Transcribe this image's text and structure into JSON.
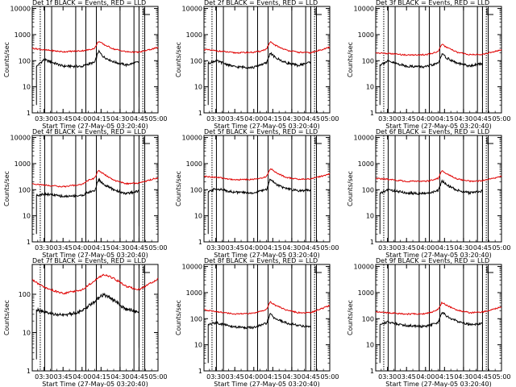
{
  "window": {
    "tick_times": [
      "03:30",
      "03:45",
      "04:00",
      "04:15",
      "04:30",
      "04:45",
      "05:00"
    ],
    "xlabel": "Start Time (27-May-05 03:20:40)",
    "ylabel": "Counts/sec",
    "y_ticks": [
      "1",
      "10",
      "100",
      "1000",
      "10000"
    ]
  },
  "colors": {
    "events": "#000000",
    "lld": "#e00000",
    "background": "#ffffff"
  },
  "chart_data": [
    {
      "type": "line",
      "title": "Det 1f BLACK = Events, RED = LLD",
      "xlabel": "Start Time (27-May-05 03:20:40)",
      "ylabel": "Counts/sec",
      "x_range": [
        "03:20:40",
        "05:00:00"
      ],
      "ylim": [
        1,
        12000
      ],
      "y_scale": "log",
      "grid": false,
      "legend": "none",
      "series": [
        {
          "name": "Events",
          "x": [
            "03:24",
            "03:30",
            "03:45",
            "04:00",
            "04:05",
            "04:10",
            "04:13",
            "04:17",
            "04:25",
            "04:35",
            "04:45"
          ],
          "values": [
            60,
            110,
            62,
            60,
            75,
            85,
            230,
            140,
            90,
            68,
            90
          ]
        },
        {
          "name": "LLD",
          "x": [
            "03:20:40",
            "03:30",
            "03:45",
            "04:00",
            "04:05",
            "04:10",
            "04:13",
            "04:17",
            "04:25",
            "04:35",
            "04:45",
            "05:00"
          ],
          "values": [
            300,
            260,
            220,
            240,
            260,
            300,
            560,
            420,
            280,
            220,
            210,
            320
          ]
        }
      ]
    },
    {
      "type": "line",
      "title": "Det 2f BLACK = Events, RED = LLD",
      "xlabel": "Start Time (27-May-05 03:20:40)",
      "ylabel": "Counts/sec",
      "x_range": [
        "03:20:40",
        "05:00:00"
      ],
      "ylim": [
        1,
        12000
      ],
      "y_scale": "log",
      "grid": false,
      "legend": "none",
      "series": [
        {
          "name": "Events",
          "x": [
            "03:24",
            "03:30",
            "03:45",
            "04:00",
            "04:05",
            "04:10",
            "04:13",
            "04:17",
            "04:25",
            "04:35",
            "04:45"
          ],
          "values": [
            80,
            100,
            58,
            55,
            70,
            80,
            200,
            130,
            85,
            65,
            90
          ]
        },
        {
          "name": "LLD",
          "x": [
            "03:20:40",
            "03:30",
            "03:45",
            "04:00",
            "04:05",
            "04:10",
            "04:13",
            "04:17",
            "04:25",
            "04:35",
            "04:45",
            "05:00"
          ],
          "values": [
            270,
            240,
            200,
            210,
            230,
            280,
            520,
            390,
            260,
            210,
            200,
            330
          ]
        }
      ]
    },
    {
      "type": "line",
      "title": "Det 3f BLACK = Events, RED = LLD",
      "xlabel": "Start Time (27-May-05 03:20:40)",
      "ylabel": "Counts/sec",
      "x_range": [
        "03:20:40",
        "05:00:00"
      ],
      "ylim": [
        1,
        12000
      ],
      "y_scale": "log",
      "grid": false,
      "legend": "none",
      "series": [
        {
          "name": "Events",
          "x": [
            "03:24",
            "03:30",
            "03:45",
            "04:00",
            "04:05",
            "04:10",
            "04:13",
            "04:17",
            "04:25",
            "04:35",
            "04:45"
          ],
          "values": [
            70,
            95,
            62,
            58,
            68,
            80,
            180,
            125,
            80,
            62,
            80
          ]
        },
        {
          "name": "LLD",
          "x": [
            "03:20:40",
            "03:30",
            "03:45",
            "04:00",
            "04:05",
            "04:10",
            "04:13",
            "04:17",
            "04:25",
            "04:35",
            "04:45",
            "05:00"
          ],
          "values": [
            200,
            190,
            165,
            170,
            190,
            230,
            420,
            320,
            210,
            170,
            175,
            260
          ]
        }
      ]
    },
    {
      "type": "line",
      "title": "Det 4f BLACK = Events, RED = LLD",
      "xlabel": "Start Time (27-May-05 03:20:40)",
      "ylabel": "Counts/sec",
      "x_range": [
        "03:20:40",
        "05:00:00"
      ],
      "ylim": [
        1,
        12000
      ],
      "y_scale": "log",
      "grid": false,
      "legend": "none",
      "series": [
        {
          "name": "Events",
          "x": [
            "03:24",
            "03:30",
            "03:45",
            "04:00",
            "04:05",
            "04:10",
            "04:13",
            "04:17",
            "04:25",
            "04:35",
            "04:45"
          ],
          "values": [
            60,
            70,
            55,
            60,
            80,
            90,
            250,
            160,
            100,
            70,
            90
          ]
        },
        {
          "name": "LLD",
          "x": [
            "03:20:40",
            "03:30",
            "03:45",
            "04:00",
            "04:05",
            "04:10",
            "04:13",
            "04:17",
            "04:25",
            "04:35",
            "04:45",
            "05:00"
          ],
          "values": [
            170,
            150,
            130,
            160,
            230,
            280,
            560,
            400,
            230,
            170,
            180,
            290
          ]
        }
      ]
    },
    {
      "type": "line",
      "title": "Det 5f BLACK = Events, RED = LLD",
      "xlabel": "Start Time (27-May-05 03:20:40)",
      "ylabel": "Counts/sec",
      "x_range": [
        "03:20:40",
        "05:00:00"
      ],
      "ylim": [
        1,
        12000
      ],
      "y_scale": "log",
      "grid": false,
      "legend": "none",
      "series": [
        {
          "name": "Events",
          "x": [
            "03:24",
            "03:30",
            "03:45",
            "04:00",
            "04:05",
            "04:10",
            "04:13",
            "04:17",
            "04:25",
            "04:35",
            "04:45"
          ],
          "values": [
            80,
            110,
            80,
            75,
            90,
            100,
            260,
            170,
            110,
            90,
            100
          ]
        },
        {
          "name": "LLD",
          "x": [
            "03:20:40",
            "03:30",
            "03:45",
            "04:00",
            "04:05",
            "04:10",
            "04:13",
            "04:17",
            "04:25",
            "04:35",
            "04:45",
            "05:00"
          ],
          "values": [
            320,
            300,
            240,
            250,
            270,
            320,
            650,
            480,
            300,
            250,
            260,
            400
          ]
        }
      ]
    },
    {
      "type": "line",
      "title": "Det 6f BLACK = Events, RED = LLD",
      "xlabel": "Start Time (27-May-05 03:20:40)",
      "ylabel": "Counts/sec",
      "x_range": [
        "03:20:40",
        "05:00:00"
      ],
      "ylim": [
        1,
        12000
      ],
      "y_scale": "log",
      "grid": false,
      "legend": "none",
      "series": [
        {
          "name": "Events",
          "x": [
            "03:24",
            "03:30",
            "03:45",
            "04:00",
            "04:05",
            "04:10",
            "04:13",
            "04:17",
            "04:25",
            "04:35",
            "04:45"
          ],
          "values": [
            70,
            100,
            75,
            70,
            80,
            90,
            220,
            150,
            95,
            75,
            90
          ]
        },
        {
          "name": "LLD",
          "x": [
            "03:20:40",
            "03:30",
            "03:45",
            "04:00",
            "04:05",
            "04:10",
            "04:13",
            "04:17",
            "04:25",
            "04:35",
            "04:45",
            "05:00"
          ],
          "values": [
            270,
            250,
            210,
            210,
            230,
            270,
            540,
            400,
            260,
            210,
            220,
            320
          ]
        }
      ]
    },
    {
      "type": "line",
      "title": "Det 7f BLACK = Events, RED = LLD",
      "xlabel": "Start Time (27-May-05 03:20:40)",
      "ylabel": "Counts/sec",
      "x_range": [
        "03:20:40",
        "05:00:00"
      ],
      "ylim": [
        1,
        600
      ],
      "y_scale": "log",
      "grid": false,
      "legend": "none",
      "series": [
        {
          "name": "Events",
          "x": [
            "03:24",
            "03:30",
            "03:45",
            "04:00",
            "04:10",
            "04:17",
            "04:25",
            "04:35",
            "04:45"
          ],
          "values": [
            40,
            33,
            28,
            36,
            65,
            100,
            70,
            40,
            35
          ]
        },
        {
          "name": "LLD",
          "x": [
            "03:20:40",
            "03:30",
            "03:45",
            "04:00",
            "04:10",
            "04:17",
            "04:25",
            "04:35",
            "04:45",
            "05:00"
          ],
          "values": [
            240,
            150,
            105,
            130,
            230,
            330,
            260,
            160,
            130,
            250
          ]
        }
      ]
    },
    {
      "type": "line",
      "title": "Det 8f BLACK = Events, RED = LLD",
      "xlabel": "Start Time (27-May-05 03:20:40)",
      "ylabel": "Counts/sec",
      "x_range": [
        "03:20:40",
        "05:00:00"
      ],
      "ylim": [
        1,
        12000
      ],
      "y_scale": "log",
      "grid": false,
      "legend": "none",
      "series": [
        {
          "name": "Events",
          "x": [
            "03:24",
            "03:30",
            "03:45",
            "04:00",
            "04:05",
            "04:10",
            "04:13",
            "04:17",
            "04:25",
            "04:35",
            "04:45"
          ],
          "values": [
            60,
            70,
            48,
            45,
            55,
            65,
            150,
            100,
            70,
            55,
            50
          ]
        },
        {
          "name": "LLD",
          "x": [
            "03:20:40",
            "03:30",
            "03:45",
            "04:00",
            "04:05",
            "04:10",
            "04:13",
            "04:17",
            "04:25",
            "04:35",
            "04:45",
            "05:00"
          ],
          "values": [
            220,
            190,
            150,
            160,
            190,
            230,
            440,
            330,
            220,
            170,
            170,
            320
          ]
        }
      ]
    },
    {
      "type": "line",
      "title": "Det 9f BLACK = Events, RED = LLD",
      "xlabel": "Start Time (27-May-05 03:20:40)",
      "ylabel": "Counts/sec",
      "x_range": [
        "03:20:40",
        "05:00:00"
      ],
      "ylim": [
        1,
        12000
      ],
      "y_scale": "log",
      "grid": false,
      "legend": "none",
      "series": [
        {
          "name": "Events",
          "x": [
            "03:24",
            "03:30",
            "03:45",
            "04:00",
            "04:05",
            "04:10",
            "04:13",
            "04:17",
            "04:25",
            "04:35",
            "04:45"
          ],
          "values": [
            60,
            75,
            55,
            50,
            60,
            70,
            180,
            120,
            80,
            60,
            65
          ]
        },
        {
          "name": "LLD",
          "x": [
            "03:20:40",
            "03:30",
            "03:45",
            "04:00",
            "04:05",
            "04:10",
            "04:13",
            "04:17",
            "04:25",
            "04:35",
            "04:45",
            "05:00"
          ],
          "values": [
            190,
            170,
            150,
            155,
            180,
            230,
            420,
            320,
            210,
            170,
            180,
            280
          ]
        }
      ]
    }
  ]
}
